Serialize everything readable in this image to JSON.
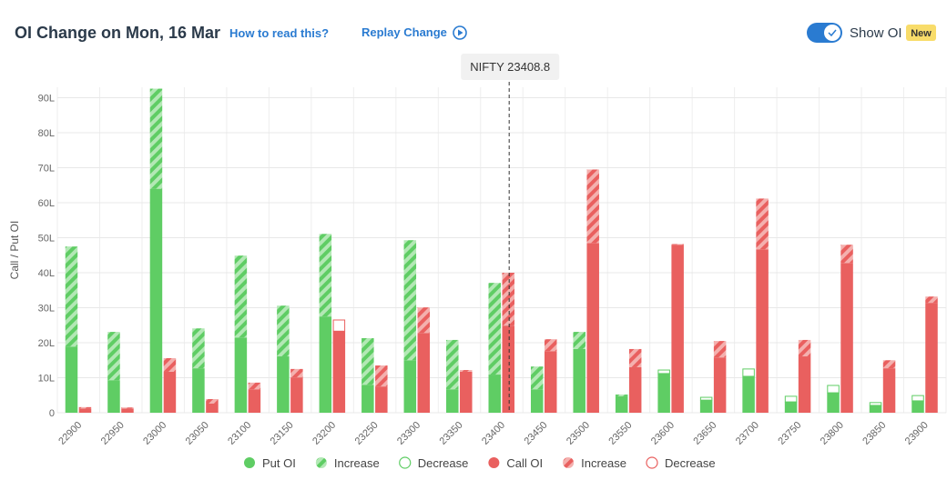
{
  "header": {
    "title": "OI Change on Mon, 16 Mar",
    "help_link": "How to read this?",
    "replay": "Replay Change",
    "toggle_label": "Show OI",
    "badge": "New"
  },
  "chart_data": {
    "type": "bar",
    "y_label": "Call / Put OI",
    "categories": [
      "22900",
      "22950",
      "23000",
      "23050",
      "23100",
      "23150",
      "23200",
      "23250",
      "23300",
      "23350",
      "23400",
      "23450",
      "23500",
      "23550",
      "23600",
      "23650",
      "23700",
      "23750",
      "23800",
      "23850",
      "23900"
    ],
    "series": [
      {
        "name": "Put OI",
        "color": "#5fcd64",
        "style": "solid",
        "values": [
          18.9,
          9.3,
          64,
          12.7,
          21.5,
          16.1,
          27.5,
          8.0,
          15.0,
          6.7,
          10.9,
          6.7,
          18.2,
          4.7,
          11.2,
          3.6,
          10.4,
          3.1,
          5.7,
          2.1,
          3.4
        ]
      },
      {
        "name": "Increase",
        "color": "#5fcd64",
        "style": "hatched",
        "values": [
          28.6,
          13.8,
          28.6,
          11.4,
          23.4,
          14.5,
          23.6,
          13.3,
          34.3,
          14.1,
          26.2,
          6.5,
          4.9,
          0.5,
          null,
          null,
          null,
          null,
          null,
          null,
          null
        ]
      },
      {
        "name": "Decrease",
        "color": "#5fcd64",
        "style": "outline",
        "values": [
          null,
          null,
          null,
          null,
          null,
          null,
          null,
          null,
          null,
          null,
          null,
          null,
          null,
          null,
          1.0,
          0.8,
          2.1,
          1.6,
          2.1,
          0.8,
          1.5
        ]
      },
      {
        "name": "Call OI",
        "color": "#e9605f",
        "style": "solid",
        "values": [
          1.2,
          1.2,
          11.7,
          2.6,
          6.7,
          10.1,
          23.3,
          7.5,
          22.8,
          11.7,
          24.9,
          17.6,
          48.5,
          13.0,
          48.0,
          15.8,
          46.7,
          16.1,
          42.8,
          12.7,
          31.4
        ]
      },
      {
        "name": "Increase",
        "color": "#e9605f",
        "style": "hatched",
        "values": [
          0.4,
          0.3,
          3.9,
          1.3,
          1.9,
          2.4,
          null,
          6.0,
          7.3,
          0.5,
          15.1,
          3.4,
          21.0,
          5.2,
          0.2,
          4.7,
          14.5,
          4.7,
          5.2,
          2.3,
          1.8
        ]
      },
      {
        "name": "Decrease",
        "color": "#e9605f",
        "style": "outline",
        "values": [
          null,
          null,
          null,
          null,
          null,
          null,
          3.2,
          null,
          null,
          null,
          null,
          null,
          null,
          null,
          null,
          null,
          null,
          null,
          null,
          null,
          null
        ]
      }
    ],
    "spot": 23408.8,
    "spot_label": "NIFTY 23408.8",
    "ylim": [
      0,
      93
    ],
    "yticks": [
      0,
      {
        "value": 10,
        "label": "10L"
      },
      {
        "value": 20,
        "label": "20L"
      },
      {
        "value": 30,
        "label": "30L"
      },
      {
        "value": 40,
        "label": "40L"
      },
      {
        "value": 50,
        "label": "50L"
      },
      {
        "value": 60,
        "label": "60L"
      },
      {
        "value": 70,
        "label": "70L"
      },
      {
        "value": 80,
        "label": "80L"
      },
      {
        "value": 90,
        "label": "90L"
      }
    ],
    "grid": true
  }
}
